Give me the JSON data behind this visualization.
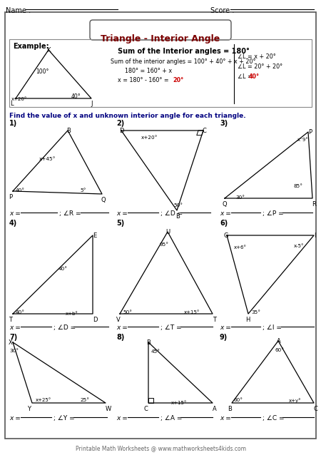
{
  "title": "Triangle - Interior Angle",
  "name_label": "Name :",
  "score_label": "Score :",
  "example_label": "Example:",
  "sum_bold": "Sum of the Interior angles = 180°",
  "sum_line2": "Sum of the interior angles = 100° + 40° + x + 20°",
  "sum_line3": "180° = 160° + x",
  "sum_line4_black": "x = 180° - 160° = ",
  "sum_line4_red": "20°",
  "angle_l1": "∠L = x + 20°",
  "angle_l2": "∠L = 20° + 20°",
  "angle_l3_black": "∠L = ",
  "angle_l3_red": "40°",
  "instruction": "Find the value of x and unknown interior angle for each triangle.",
  "footer": "Printable Math Worksheets @ www.mathworksheets4kids.com",
  "bg_color": "#ffffff",
  "title_color": "#7B0000",
  "blue_color": "#000080",
  "red_color": "#cc0000"
}
